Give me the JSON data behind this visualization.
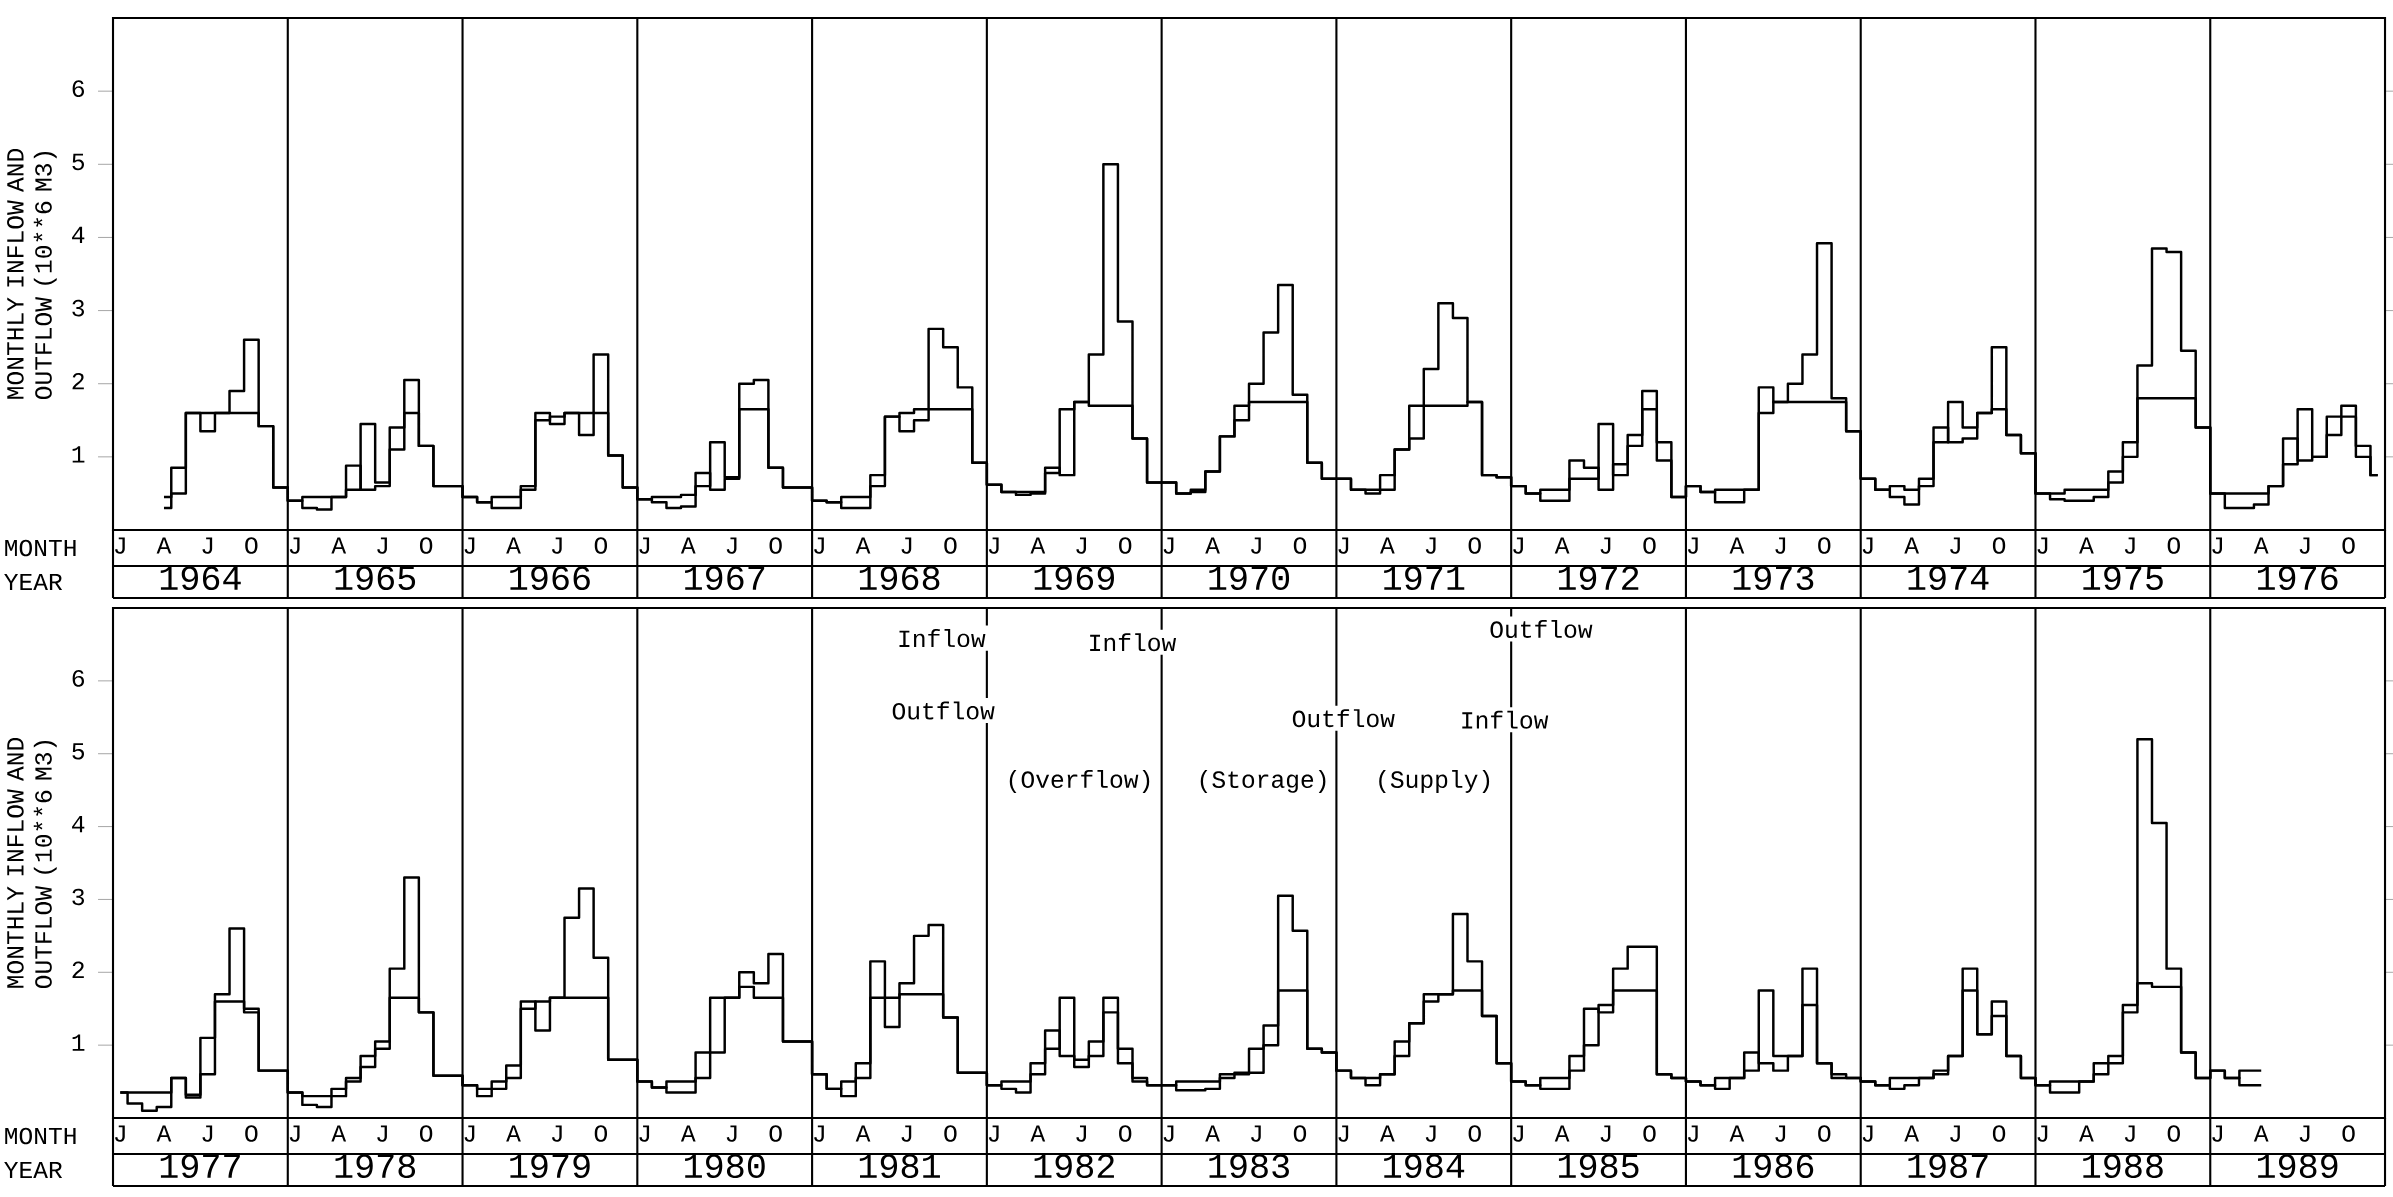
{
  "chart_data": [
    {
      "type": "step",
      "ylabel": "MONTHLY INFLOW AND OUTFLOW (10**6 M3)",
      "xlabel": "MONTH",
      "x2label": "YEAR",
      "categories": [
        "J",
        null,
        null,
        "A",
        null,
        null,
        "J",
        null,
        null,
        "O",
        null,
        null,
        "J",
        null,
        null,
        "A",
        null,
        null,
        "J",
        null,
        null,
        "O",
        null,
        null,
        "J",
        null,
        null,
        "A",
        null,
        null,
        "J",
        null,
        null,
        "O",
        null,
        null,
        "J",
        null,
        null,
        "A",
        null,
        null,
        "J",
        null,
        null,
        "O",
        null,
        null,
        "J",
        null,
        null,
        "A",
        null,
        null,
        "J",
        null,
        null,
        "O",
        null,
        null,
        "J",
        null,
        null,
        "A",
        null,
        null,
        "J",
        null,
        null,
        "O",
        null,
        null,
        "J",
        null,
        null,
        "A",
        null,
        null,
        "J",
        null,
        null,
        "O",
        null,
        null,
        "J",
        null,
        null,
        "A",
        null,
        null,
        "J",
        null,
        null,
        "O",
        null,
        null,
        "J",
        null,
        null,
        "A",
        null,
        null,
        "J",
        null,
        null,
        "O",
        null,
        null,
        "J",
        null,
        null,
        "A",
        null,
        null,
        "J",
        null,
        null,
        "O",
        null,
        null,
        "J",
        null,
        null,
        "A",
        null,
        null,
        "J",
        null,
        null,
        "O",
        null,
        null,
        "J",
        null,
        null,
        "A",
        null,
        null,
        "J",
        null,
        null,
        "O",
        null,
        null,
        "J",
        null,
        null,
        "A",
        null,
        null,
        "J",
        null,
        null,
        "O",
        null,
        null
      ],
      "series": [
        {
          "color": "#000000",
          "values": [
            null,
            null,
            null,
            0.3,
            0.85,
            1.6,
            1.35,
            1.6,
            1.9,
            2.6,
            1.42,
            0.58,
            0.4,
            0.3,
            0.28,
            0.45,
            0.88,
            0.55,
            0.6,
            1.4,
            2.05,
            1.15,
            0.6,
            0.6,
            0.45,
            0.38,
            0.3,
            0.3,
            0.6,
            1.6,
            1.45,
            1.6,
            1.3,
            2.4,
            1.02,
            0.58,
            0.42,
            0.38,
            0.3,
            0.32,
            0.78,
            0.55,
            0.7,
            2.0,
            2.05,
            0.85,
            0.58,
            0.58,
            0.4,
            0.38,
            0.3,
            0.3,
            0.75,
            1.55,
            1.35,
            1.5,
            2.75,
            2.5,
            1.95,
            0.92,
            0.62,
            0.52,
            0.48,
            0.5,
            0.85,
            0.75,
            1.75,
            2.4,
            5.0,
            2.85,
            1.25,
            0.65,
            0.65,
            0.5,
            0.52,
            0.8,
            1.28,
            1.5,
            2.0,
            2.7,
            3.35,
            1.85,
            0.92,
            0.7,
            0.7,
            0.55,
            0.5,
            0.75,
            1.1,
            1.25,
            2.2,
            3.1,
            2.9,
            1.75,
            0.75,
            0.72,
            0.6,
            0.5,
            0.4,
            0.4,
            0.95,
            0.85,
            0.55,
            0.9,
            1.3,
            1.9,
            1.2,
            0.45,
            0.6,
            0.52,
            0.38,
            0.38,
            0.55,
            1.95,
            1.75,
            2.0,
            2.4,
            3.92,
            1.8,
            1.35,
            0.7,
            0.55,
            0.45,
            0.35,
            0.7,
            1.4,
            1.2,
            1.25,
            1.6,
            2.5,
            1.3,
            1.05,
            0.5,
            0.42,
            0.4,
            0.4,
            0.45,
            0.8,
            1.0,
            2.25,
            3.85,
            3.8,
            2.45,
            1.4,
            0.5,
            0.3,
            0.3,
            0.35,
            0.6,
            1.25,
            0.95,
            1.0,
            1.55,
            1.7,
            1.15,
            0.75
          ]
        },
        {
          "color": "#000000",
          "values": [
            null,
            null,
            null,
            0.45,
            0.5,
            1.6,
            1.6,
            1.6,
            1.6,
            1.6,
            1.42,
            0.58,
            0.4,
            0.45,
            0.45,
            0.45,
            0.55,
            1.45,
            0.65,
            1.1,
            1.6,
            1.15,
            0.6,
            0.6,
            0.45,
            0.38,
            0.45,
            0.45,
            0.55,
            1.5,
            1.55,
            1.6,
            1.6,
            1.6,
            1.02,
            0.58,
            0.42,
            0.45,
            0.45,
            0.48,
            0.6,
            1.2,
            0.72,
            1.65,
            1.65,
            0.85,
            0.58,
            0.58,
            0.4,
            0.38,
            0.45,
            0.45,
            0.6,
            1.55,
            1.6,
            1.65,
            1.65,
            1.65,
            1.65,
            0.92,
            0.62,
            0.52,
            0.52,
            0.52,
            0.78,
            1.65,
            1.75,
            1.7,
            1.7,
            1.7,
            1.25,
            0.65,
            0.65,
            0.5,
            0.55,
            0.8,
            1.28,
            1.7,
            1.75,
            1.75,
            1.75,
            1.75,
            0.92,
            0.7,
            0.7,
            0.55,
            0.55,
            0.55,
            1.1,
            1.7,
            1.7,
            1.7,
            1.7,
            1.75,
            0.75,
            0.72,
            0.6,
            0.5,
            0.55,
            0.55,
            0.7,
            0.7,
            1.45,
            0.75,
            1.15,
            1.65,
            0.95,
            0.45,
            0.6,
            0.52,
            0.55,
            0.55,
            0.55,
            1.6,
            1.75,
            1.75,
            1.75,
            1.75,
            1.75,
            1.35,
            0.7,
            0.55,
            0.6,
            0.55,
            0.6,
            1.2,
            1.75,
            1.4,
            1.6,
            1.65,
            1.3,
            1.05,
            0.5,
            0.5,
            0.55,
            0.55,
            0.55,
            0.65,
            1.2,
            1.8,
            1.8,
            1.8,
            1.8,
            1.4,
            0.5,
            0.5,
            0.5,
            0.5,
            0.6,
            0.9,
            1.65,
            1.0,
            1.3,
            1.55,
            1.0,
            0.75
          ]
        }
      ],
      "ylim": [
        0,
        7
      ],
      "yticks": [
        1,
        2,
        3,
        4,
        5,
        6
      ],
      "marker": "none",
      "grid": "x",
      "x2lim": [
        1963.5,
        1976.5
      ],
      "x2ticks": [
        1964,
        1965,
        1966,
        1967,
        1968,
        1969,
        1970,
        1971,
        1972,
        1973,
        1974,
        1975,
        1976,
        {
          "value": 1964.5,
          "label": null
        },
        {
          "value": 1965.5,
          "label": null
        },
        {
          "value": 1966.5,
          "label": null
        },
        {
          "value": 1967.5,
          "label": null
        },
        {
          "value": 1968.5,
          "label": null
        },
        {
          "value": 1969.5,
          "label": null
        },
        {
          "value": 1970.5,
          "label": null
        },
        {
          "value": 1971.5,
          "label": null
        },
        {
          "value": 1972.5,
          "label": null
        },
        {
          "value": 1973.5,
          "label": null
        },
        {
          "value": 1974.5,
          "label": null
        },
        {
          "value": 1975.5,
          "label": null
        }
      ]
    },
    {
      "type": "step",
      "ylabel": "MONTHLY INFLOW AND OUTFLOW (10**6 M3)",
      "xlabel": "MONTH",
      "x2label": "YEAR",
      "categories": [
        "J",
        null,
        null,
        "A",
        null,
        null,
        "J",
        null,
        null,
        "O",
        null,
        null,
        "J",
        null,
        null,
        "A",
        null,
        null,
        "J",
        null,
        null,
        "O",
        null,
        null,
        "J",
        null,
        null,
        "A",
        null,
        null,
        "J",
        null,
        null,
        "O",
        null,
        null,
        "J",
        null,
        null,
        "A",
        null,
        null,
        "J",
        null,
        null,
        "O",
        null,
        null,
        "J",
        null,
        null,
        "A",
        null,
        null,
        "J",
        null,
        null,
        "O",
        null,
        null,
        "J",
        null,
        null,
        "A",
        null,
        null,
        "J",
        null,
        null,
        "O",
        null,
        null,
        "J",
        null,
        null,
        "A",
        null,
        null,
        "J",
        null,
        null,
        "O",
        null,
        null,
        "J",
        null,
        null,
        "A",
        null,
        null,
        "J",
        null,
        null,
        "O",
        null,
        null,
        "J",
        null,
        null,
        "A",
        null,
        null,
        "J",
        null,
        null,
        "O",
        null,
        null,
        "J",
        null,
        null,
        "A",
        null,
        null,
        "J",
        null,
        null,
        "O",
        null,
        null,
        "J",
        null,
        null,
        "A",
        null,
        null,
        "J",
        null,
        null,
        "O",
        null,
        null,
        "J",
        null,
        null,
        "A",
        null,
        null,
        "J",
        null,
        null,
        "O",
        null,
        null,
        "J",
        null,
        null,
        "A",
        null,
        null,
        "J",
        null,
        null,
        "O",
        null,
        null
      ],
      "series": [
        {
          "color": "#000000",
          "values": [
            0.35,
            0.2,
            0.1,
            0.15,
            0.55,
            0.28,
            1.1,
            1.7,
            2.6,
            1.45,
            0.65,
            0.65,
            0.35,
            0.18,
            0.15,
            0.3,
            0.55,
            0.7,
            1.05,
            2.05,
            3.3,
            1.45,
            0.58,
            0.58,
            0.45,
            0.3,
            0.4,
            0.72,
            1.6,
            1.2,
            1.65,
            2.75,
            3.15,
            2.2,
            0.8,
            0.8,
            0.5,
            0.42,
            0.35,
            0.35,
            0.9,
            0.9,
            1.65,
            2.0,
            1.85,
            2.25,
            1.05,
            1.05,
            0.6,
            0.4,
            0.3,
            0.75,
            2.15,
            1.25,
            1.85,
            2.5,
            2.65,
            1.38,
            0.62,
            0.62,
            0.45,
            0.4,
            0.35,
            0.75,
            1.2,
            0.85,
            0.7,
            1.05,
            1.65,
            0.95,
            0.55,
            0.45,
            0.45,
            0.38,
            0.38,
            0.4,
            0.55,
            0.6,
            0.95,
            1.27,
            3.05,
            2.57,
            0.95,
            0.9,
            0.65,
            0.55,
            0.45,
            0.6,
            1.05,
            1.3,
            1.6,
            1.7,
            2.8,
            2.15,
            1.4,
            0.75,
            0.5,
            0.45,
            0.4,
            0.4,
            0.85,
            1.0,
            1.55,
            2.05,
            2.35,
            2.35,
            0.6,
            0.55,
            0.5,
            0.45,
            0.4,
            0.55,
            0.9,
            0.75,
            0.65,
            0.85,
            2.05,
            0.75,
            0.6,
            0.55,
            0.5,
            0.45,
            0.4,
            0.45,
            0.55,
            0.6,
            0.85,
            2.05,
            1.15,
            1.6,
            0.85,
            0.55,
            0.45,
            0.35,
            0.35,
            0.5,
            0.75,
            0.75,
            1.55,
            5.2,
            4.05,
            2.05,
            0.9,
            0.55,
            0.65,
            0.55,
            0.45,
            0.45,
            null,
            null,
            null,
            null,
            null,
            null,
            null,
            null
          ]
        },
        {
          "color": "#000000",
          "values": [
            0.35,
            0.35,
            0.35,
            0.35,
            0.55,
            0.32,
            0.6,
            1.6,
            1.6,
            1.5,
            0.65,
            0.65,
            0.35,
            0.3,
            0.3,
            0.4,
            0.5,
            0.85,
            0.95,
            1.65,
            1.65,
            1.45,
            0.58,
            0.58,
            0.45,
            0.4,
            0.5,
            0.55,
            1.5,
            1.6,
            1.65,
            1.65,
            1.65,
            1.65,
            0.8,
            0.8,
            0.5,
            0.42,
            0.5,
            0.5,
            0.55,
            1.65,
            1.65,
            1.8,
            1.65,
            1.65,
            1.05,
            1.05,
            0.6,
            0.4,
            0.5,
            0.55,
            1.65,
            1.65,
            1.7,
            1.7,
            1.7,
            1.38,
            0.62,
            0.62,
            0.45,
            0.5,
            0.5,
            0.6,
            0.95,
            1.65,
            0.8,
            0.85,
            1.45,
            0.75,
            0.5,
            0.45,
            0.45,
            0.5,
            0.5,
            0.5,
            0.6,
            0.62,
            0.62,
            1.0,
            1.75,
            1.75,
            0.95,
            0.9,
            0.65,
            0.55,
            0.55,
            0.6,
            0.85,
            1.3,
            1.7,
            1.7,
            1.75,
            1.75,
            1.4,
            0.75,
            0.5,
            0.45,
            0.55,
            0.55,
            0.65,
            1.5,
            1.45,
            1.75,
            1.75,
            1.75,
            0.6,
            0.55,
            0.5,
            0.45,
            0.55,
            0.55,
            0.65,
            1.75,
            0.85,
            0.85,
            1.55,
            0.75,
            0.55,
            0.55,
            0.5,
            0.45,
            0.55,
            0.55,
            0.55,
            0.65,
            0.85,
            1.75,
            1.15,
            1.4,
            0.85,
            0.55,
            0.45,
            0.5,
            0.5,
            0.5,
            0.6,
            0.85,
            1.45,
            1.85,
            1.8,
            1.8,
            0.9,
            0.55,
            0.65,
            0.55,
            0.65,
            0.65,
            null,
            null,
            null,
            null,
            null,
            null,
            null,
            null
          ]
        }
      ],
      "ylim": [
        0,
        7
      ],
      "yticks": [
        1,
        2,
        3,
        4,
        5,
        6
      ],
      "marker": "none",
      "grid": "x",
      "x2lim": [
        1976.5,
        1989.5
      ],
      "x2ticks": [
        1977,
        1978,
        1979,
        1980,
        1981,
        1982,
        1983,
        1984,
        1985,
        1986,
        1987,
        1988,
        1989,
        {
          "value": 1977.5,
          "label": null
        },
        {
          "value": 1978.5,
          "label": null
        },
        {
          "value": 1979.5,
          "label": null
        },
        {
          "value": 1980.5,
          "label": null
        },
        {
          "value": 1981.5,
          "label": null
        },
        {
          "value": 1982.5,
          "label": null
        },
        {
          "value": 1983.5,
          "label": null
        },
        {
          "value": 1984.5,
          "label": null
        },
        {
          "value": 1985.5,
          "label": null
        },
        {
          "value": 1986.5,
          "label": null
        },
        {
          "value": 1987.5,
          "label": null
        },
        {
          "value": 1988.5,
          "label": null
        }
      ],
      "annotations": [
        "Inflow",
        "Outflow",
        "(Overflow)",
        "Inflow",
        "Outflow",
        "(Storage)",
        "Outflow",
        "Inflow",
        "(Supply)"
      ]
    }
  ]
}
